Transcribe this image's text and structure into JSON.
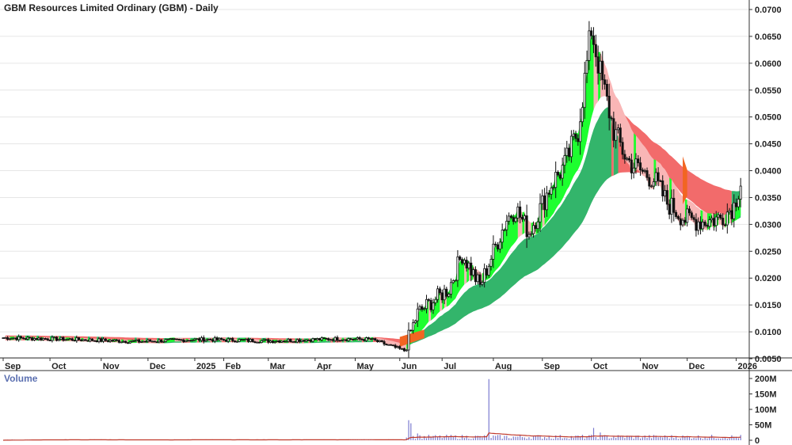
{
  "chart_data": {
    "type": "candlestick",
    "title": "GBM Resources Limited Ordinary (GBM) - Daily",
    "price_axis": {
      "ylim": [
        0.005,
        0.07
      ],
      "ticks": [
        "0.0700",
        "0.0650",
        "0.0600",
        "0.0550",
        "0.0500",
        "0.0450",
        "0.0400",
        "0.0350",
        "0.0300",
        "0.0250",
        "0.0200",
        "0.0150",
        "0.0100",
        "0.0050"
      ]
    },
    "x_axis": {
      "months": [
        {
          "label": "Sep",
          "i": 0
        },
        {
          "label": "Oct",
          "i": 21
        },
        {
          "label": "Nov",
          "i": 44
        },
        {
          "label": "Dec",
          "i": 65
        },
        {
          "label": "2025",
          "i": 86
        },
        {
          "label": "Feb",
          "i": 99
        },
        {
          "label": "Mar",
          "i": 119
        },
        {
          "label": "Apr",
          "i": 140
        },
        {
          "label": "May",
          "i": 158
        },
        {
          "label": "Jun",
          "i": 178
        },
        {
          "label": "Jul",
          "i": 197
        },
        {
          "label": "Aug",
          "i": 220
        },
        {
          "label": "Sep",
          "i": 242
        },
        {
          "label": "Oct",
          "i": 264
        },
        {
          "label": "Nov",
          "i": 286
        },
        {
          "label": "Dec",
          "i": 307
        },
        {
          "label": "2026",
          "i": 329
        }
      ]
    },
    "close_anchors": [
      [
        0,
        0.0089
      ],
      [
        30,
        0.0086
      ],
      [
        60,
        0.0082
      ],
      [
        90,
        0.0086
      ],
      [
        120,
        0.0083
      ],
      [
        150,
        0.0087
      ],
      [
        165,
        0.0086
      ],
      [
        175,
        0.0072
      ],
      [
        180,
        0.0065
      ],
      [
        182,
        0.009
      ],
      [
        186,
        0.0135
      ],
      [
        192,
        0.0155
      ],
      [
        200,
        0.018
      ],
      [
        206,
        0.0245
      ],
      [
        214,
        0.0185
      ],
      [
        222,
        0.027
      ],
      [
        226,
        0.031
      ],
      [
        230,
        0.033
      ],
      [
        236,
        0.0285
      ],
      [
        240,
        0.032
      ],
      [
        246,
        0.0375
      ],
      [
        252,
        0.041
      ],
      [
        258,
        0.0475
      ],
      [
        262,
        0.06
      ],
      [
        264,
        0.0665
      ],
      [
        268,
        0.058
      ],
      [
        274,
        0.0475
      ],
      [
        280,
        0.042
      ],
      [
        286,
        0.04
      ],
      [
        292,
        0.0385
      ],
      [
        298,
        0.034
      ],
      [
        306,
        0.031
      ],
      [
        314,
        0.0305
      ],
      [
        322,
        0.0312
      ],
      [
        328,
        0.0335
      ],
      [
        331,
        0.038
      ]
    ],
    "volume_axis": {
      "ylim": [
        0,
        200
      ],
      "unit": "M",
      "ticks": [
        "200M",
        "150M",
        "100M",
        "50M",
        "0"
      ]
    },
    "volume_spikes": [
      {
        "i": 182,
        "v": 65
      },
      {
        "i": 183,
        "v": 55
      },
      {
        "i": 218,
        "v": 198
      },
      {
        "i": 265,
        "v": 40
      },
      {
        "i": 268,
        "v": 25
      },
      {
        "i": 186,
        "v": 22
      }
    ],
    "bands": [
      {
        "name": "",
        "color": "#f26b6b"
      },
      {
        "name": "",
        "color": "#f9b6b6"
      },
      {
        "name": "",
        "color": "#1dff2f"
      },
      {
        "name": "",
        "color": "#33b56b"
      },
      {
        "name": "",
        "color": "#f26522"
      }
    ],
    "volume_label": "Volume",
    "volume_ma_color": "#c0392b",
    "volume_bar_color": "#7b7bd0"
  }
}
